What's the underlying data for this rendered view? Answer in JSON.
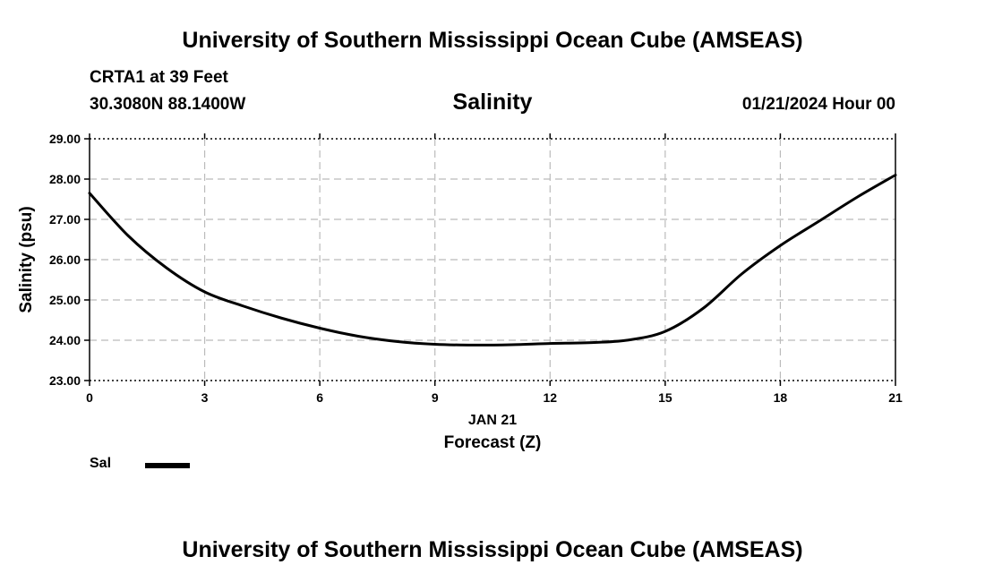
{
  "header": {
    "title": "University of Southern Mississippi Ocean Cube (AMSEAS)",
    "station": "CRTA1 at 39 Feet",
    "coordinates": "30.3080N  88.1400W",
    "datetime": "01/21/2024 Hour 00"
  },
  "footer": {
    "title": "University of Southern Mississippi Ocean Cube (AMSEAS)"
  },
  "legend": {
    "label": "Sal"
  },
  "colors": {
    "line": "#000000",
    "grid": "#bbbbbb",
    "axis": "#000000"
  },
  "chart_data": {
    "type": "line",
    "title": "Salinity",
    "xlabel": "Forecast (Z)",
    "xsublabel": "JAN 21",
    "ylabel": "Salinity (psu)",
    "xlim": [
      0,
      21
    ],
    "ylim": [
      23,
      29
    ],
    "xticks": [
      0,
      3,
      6,
      9,
      12,
      15,
      18,
      21
    ],
    "xtick_labels": [
      "0",
      "3",
      "6",
      "9",
      "12",
      "15",
      "18",
      "21"
    ],
    "yticks": [
      23,
      24,
      25,
      26,
      27,
      28,
      29
    ],
    "ytick_labels": [
      "23.00",
      "24.00",
      "25.00",
      "26.00",
      "27.00",
      "28.00",
      "29.00"
    ],
    "grid": true,
    "series": [
      {
        "name": "Sal",
        "x": [
          0,
          1,
          2,
          3,
          4,
          5,
          6,
          7,
          8,
          9,
          10,
          11,
          12,
          13,
          14,
          15,
          16,
          17,
          18,
          19,
          20,
          21
        ],
        "values": [
          27.65,
          26.6,
          25.8,
          25.2,
          24.85,
          24.55,
          24.3,
          24.1,
          23.97,
          23.9,
          23.88,
          23.89,
          23.92,
          23.94,
          24.0,
          24.22,
          24.8,
          25.65,
          26.35,
          26.95,
          27.55,
          28.1
        ]
      }
    ]
  }
}
